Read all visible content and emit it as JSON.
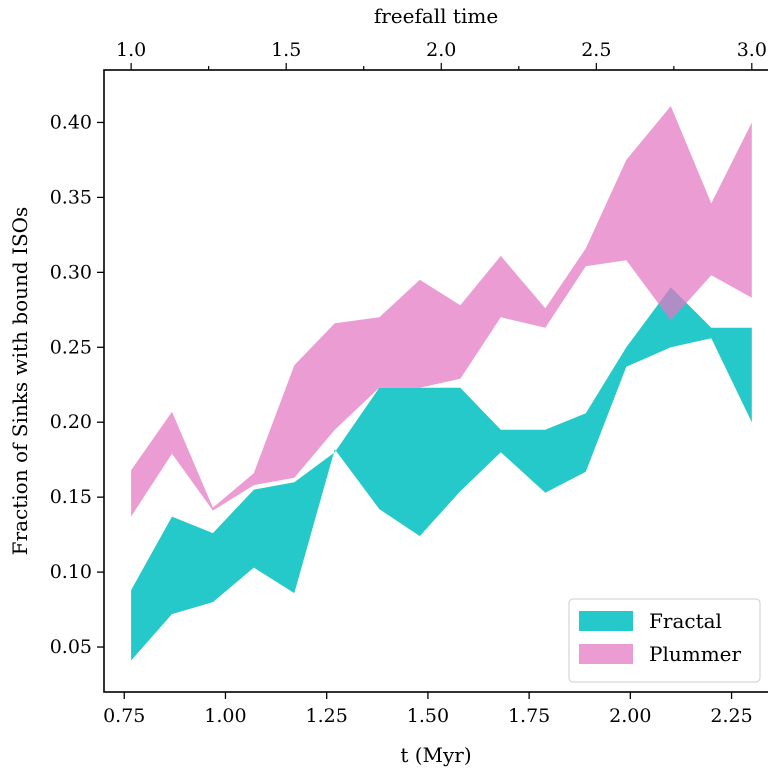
{
  "chart_data": {
    "type": "area",
    "xlabel": "t (Myr)",
    "ylabel": "Fraction of Sinks with bound ISOs",
    "top_xlabel": "freefall time",
    "xlim": [
      0.7,
      2.34
    ],
    "ylim": [
      0.02,
      0.435
    ],
    "x_ticks": [
      0.75,
      1.0,
      1.25,
      1.5,
      1.75,
      2.0,
      2.25
    ],
    "x_tick_labels": [
      "0.75",
      "1.00",
      "1.25",
      "1.50",
      "1.75",
      "2.00",
      "2.25"
    ],
    "y_ticks": [
      0.05,
      0.1,
      0.15,
      0.2,
      0.25,
      0.3,
      0.35,
      0.4
    ],
    "y_tick_labels": [
      "0.05",
      "0.10",
      "0.15",
      "0.20",
      "0.25",
      "0.30",
      "0.35",
      "0.40"
    ],
    "top_ticks_at_t": [
      0.767,
      0.9585,
      1.15,
      1.3415,
      1.533,
      1.7245,
      1.916,
      2.1075,
      2.3
    ],
    "top_tick_labels": [
      "1.0",
      "",
      "1.5",
      "",
      "2.0",
      "",
      "2.5",
      "",
      "3.0"
    ],
    "legend_placement": "lower-right",
    "grid": false,
    "series": [
      {
        "name": "Fractal",
        "color": "#00bfbf",
        "opacity": 0.85,
        "x": [
          0.767,
          0.868,
          0.969,
          1.07,
          1.17,
          1.27,
          1.38,
          1.48,
          1.58,
          1.68,
          1.79,
          1.89,
          1.99,
          2.1,
          2.2,
          2.3
        ],
        "y_low": [
          0.041,
          0.072,
          0.08,
          0.103,
          0.086,
          0.182,
          0.142,
          0.124,
          0.154,
          0.18,
          0.153,
          0.167,
          0.237,
          0.25,
          0.256,
          0.2
        ],
        "y_high": [
          0.088,
          0.137,
          0.126,
          0.155,
          0.16,
          0.18,
          0.223,
          0.223,
          0.223,
          0.195,
          0.195,
          0.206,
          0.25,
          0.29,
          0.263,
          0.263
        ]
      },
      {
        "name": "Plummer",
        "color": "#e377c2",
        "opacity": 0.72,
        "x": [
          0.767,
          0.868,
          0.969,
          1.07,
          1.17,
          1.27,
          1.38,
          1.48,
          1.58,
          1.68,
          1.79,
          1.89,
          1.99,
          2.1,
          2.2,
          2.3
        ],
        "y_low": [
          0.137,
          0.179,
          0.141,
          0.158,
          0.163,
          0.195,
          0.223,
          0.223,
          0.229,
          0.27,
          0.263,
          0.304,
          0.308,
          0.268,
          0.298,
          0.283
        ],
        "y_high": [
          0.168,
          0.207,
          0.143,
          0.166,
          0.238,
          0.266,
          0.27,
          0.295,
          0.278,
          0.311,
          0.276,
          0.316,
          0.375,
          0.411,
          0.346,
          0.4
        ]
      }
    ]
  }
}
